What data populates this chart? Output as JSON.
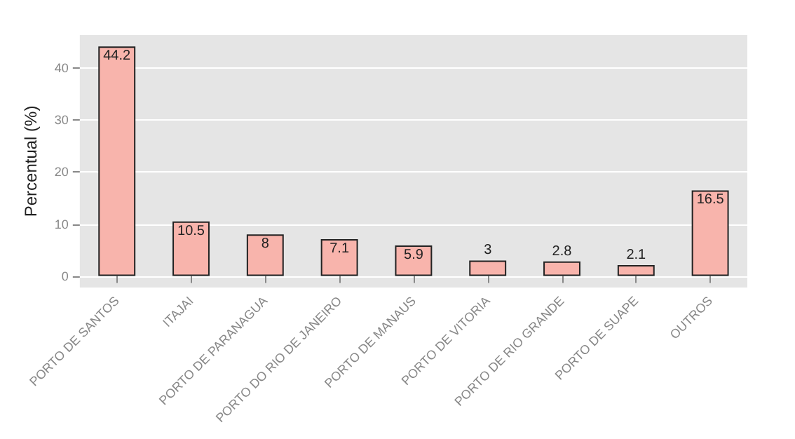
{
  "chart_data": {
    "type": "bar",
    "ylabel": "Percentual (%)",
    "categories": [
      "PORTO DE SANTOS",
      "ITAJAI",
      "PORTO DE PARANAGUA",
      "PORTO DO RIO DE JANEIRO",
      "PORTO DE MANAUS",
      "PORTO DE VITORIA",
      "PORTO DE RIO GRANDE",
      "PORTO DE SUAPE",
      "OUTROS"
    ],
    "values": [
      44.2,
      10.5,
      8,
      7.1,
      5.9,
      3,
      2.8,
      2.1,
      16.5
    ],
    "color": "#f8b4ac",
    "ylim": [
      -2.2,
      46.4
    ],
    "yticks": [
      0,
      10,
      20,
      30,
      40
    ],
    "grid": "y",
    "data_labels": true
  }
}
